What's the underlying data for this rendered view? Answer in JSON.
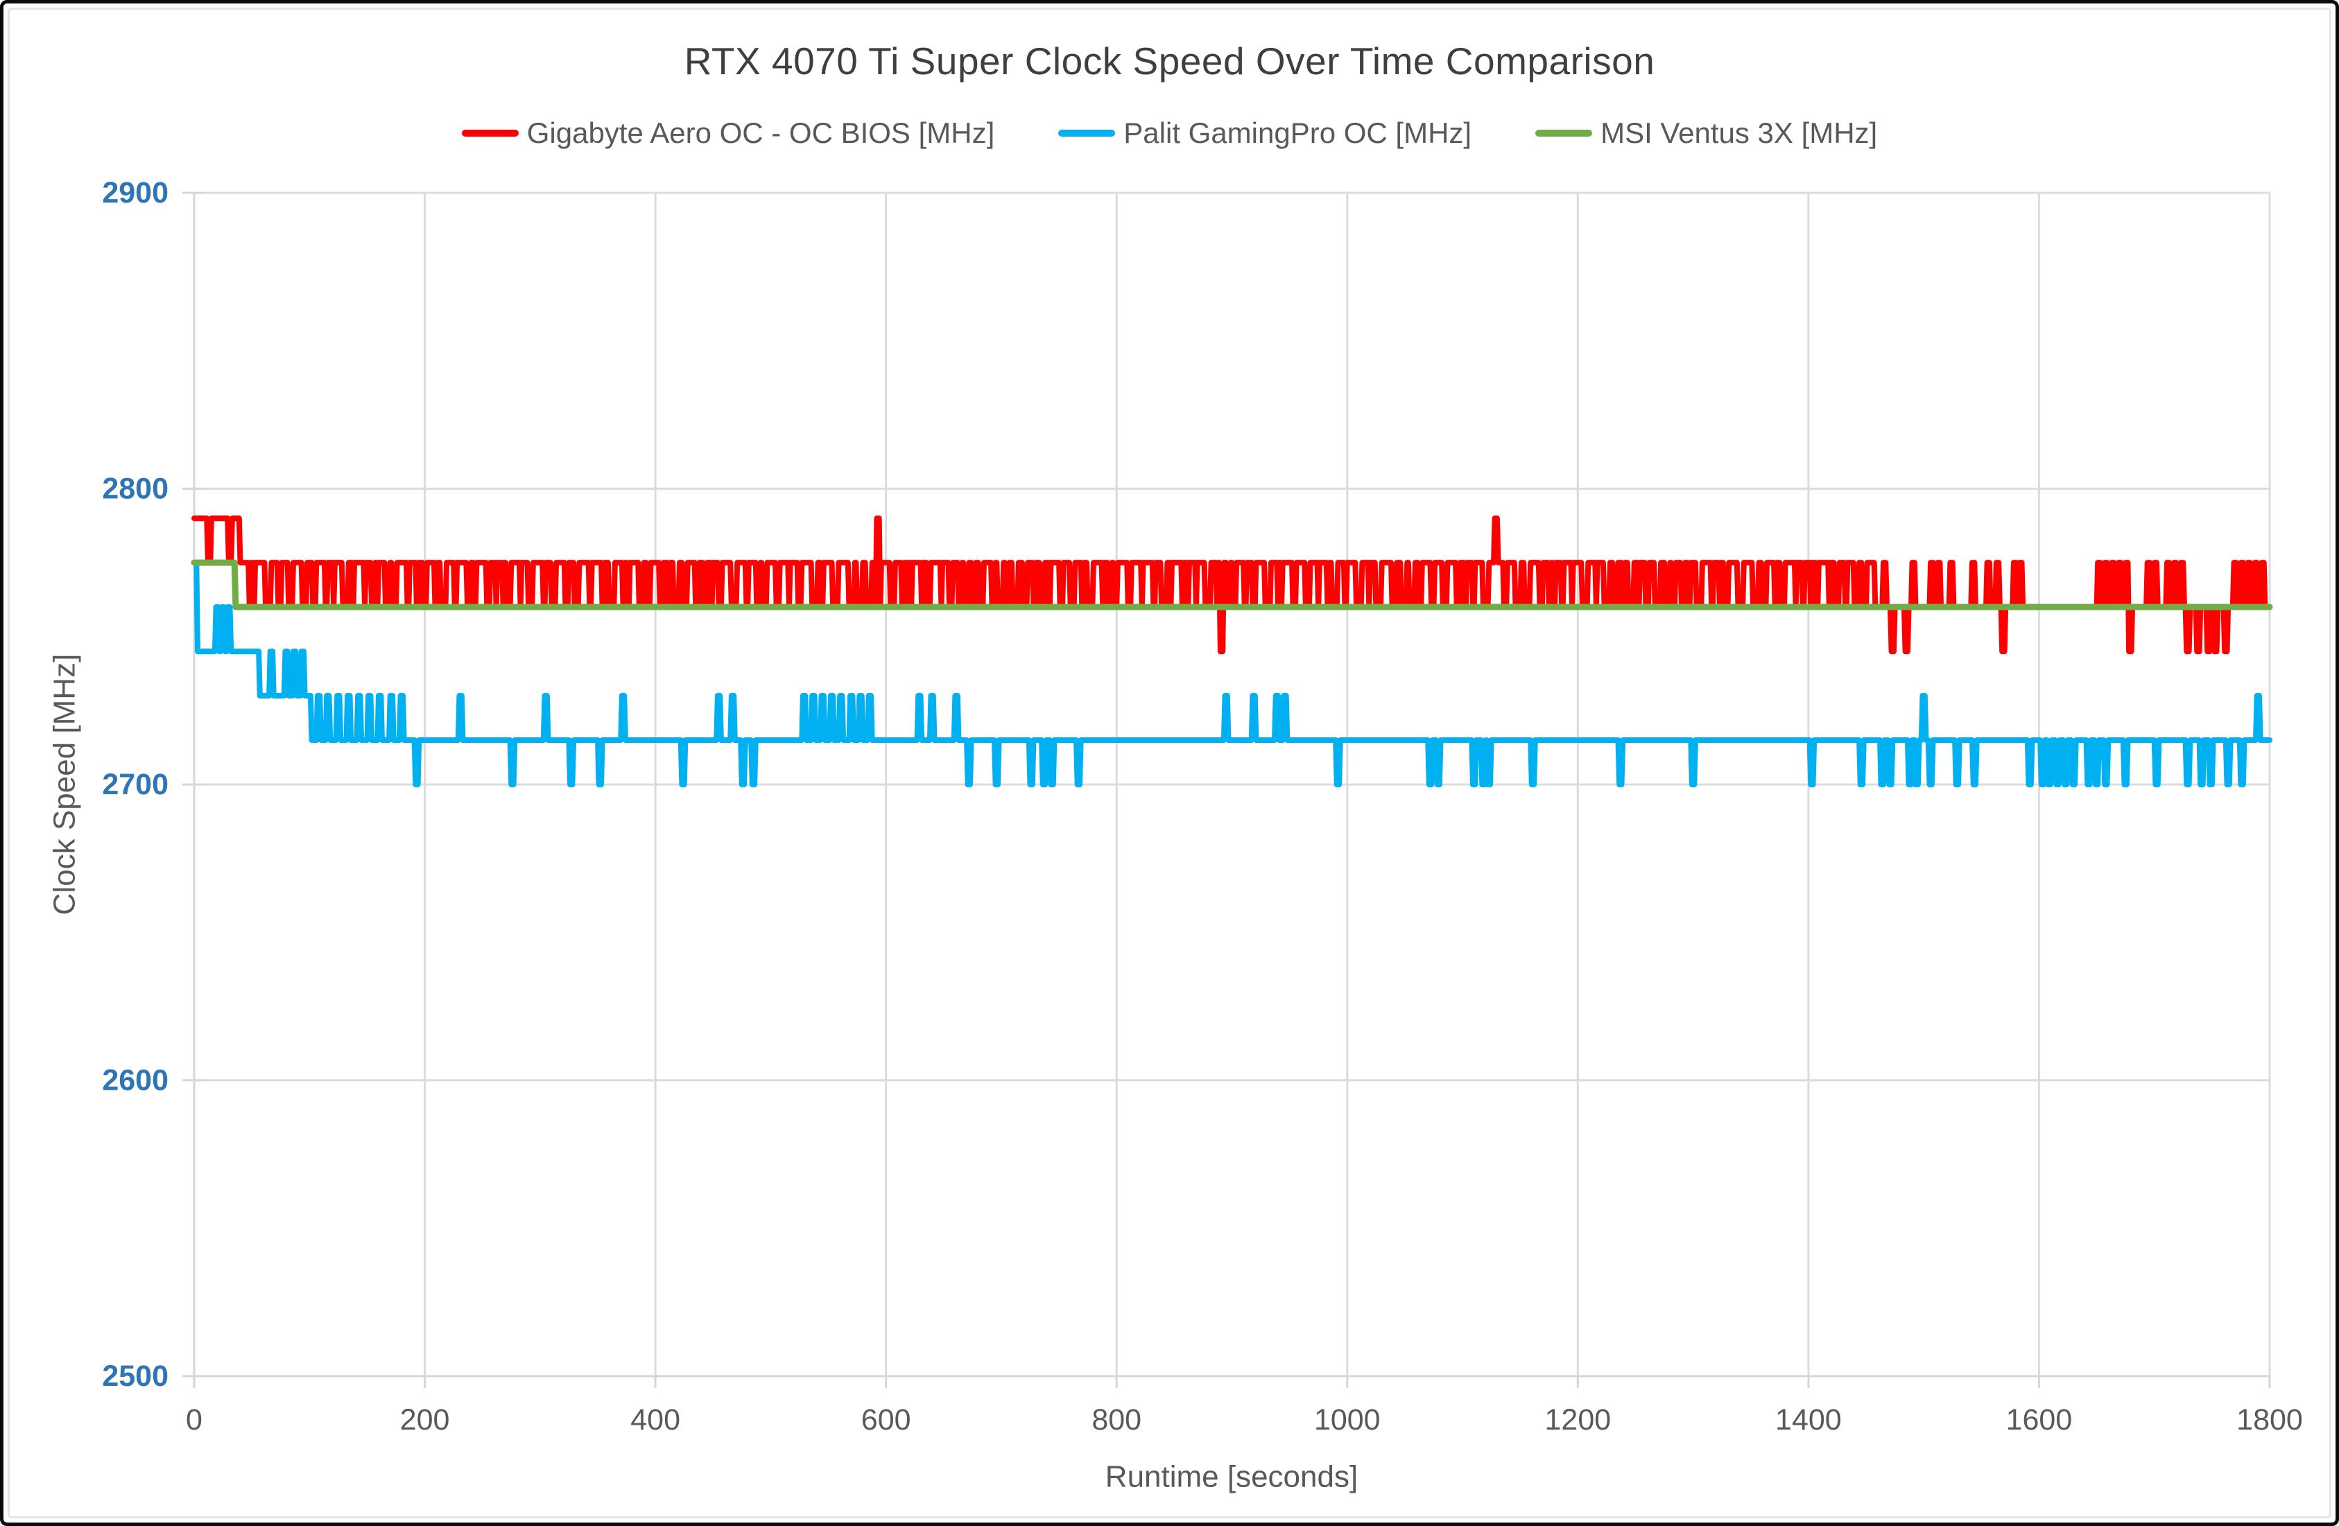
{
  "chart_data": {
    "type": "line",
    "title": "RTX 4070 Ti Super Clock Speed Over Time Comparison",
    "xlabel": "Runtime [seconds]",
    "ylabel": "Clock Speed [MHz]",
    "xlim": [
      0,
      1800
    ],
    "ylim": [
      2500,
      2900
    ],
    "x_ticks": [
      0,
      200,
      400,
      600,
      800,
      1000,
      1200,
      1400,
      1600,
      1800
    ],
    "y_ticks": [
      2500,
      2600,
      2700,
      2800,
      2900
    ],
    "grid": true,
    "legend_position": "top",
    "sample_interval_s": 1,
    "clock_step_mhz": 15,
    "rng_seed": 7,
    "colors": {
      "grid": "#dbdbdb",
      "axis_line": "#d6d6d6",
      "tick_mark": "#d6d6d6",
      "y_tick_label": "#2e75b6",
      "x_tick_label": "#595959",
      "axis_title": "#595959",
      "title_text": "#3f3f3f"
    },
    "series": [
      {
        "name": "Gigabyte Aero OC - OC BIOS [MHz]",
        "color": "#fe0000",
        "stroke_width": 8,
        "segments": [
          {
            "t0": 0,
            "t1": 40,
            "type": "toggle",
            "hi": 2790,
            "lo": 2775,
            "hi_dwell": [
              10,
              18
            ],
            "lo_dwell": [
              2,
              3
            ]
          },
          {
            "t0": 40,
            "t1": 1459,
            "type": "toggle",
            "hi": 2775,
            "lo": 2760,
            "hi_dwell": [
              2,
              9
            ],
            "lo_dwell": [
              1,
              5
            ]
          },
          {
            "t0": 1459,
            "t1": 1800,
            "type": "const",
            "v": 2760
          }
        ],
        "pulses": [
          {
            "t": 593,
            "v": 2790
          },
          {
            "t": 1129,
            "v": 2790
          },
          {
            "t": 1466,
            "v": 2775
          },
          {
            "t": 1491,
            "v": 2775
          },
          {
            "t": 1507,
            "v": 2775
          },
          {
            "t": 1513,
            "v": 2775
          },
          {
            "t": 1524,
            "v": 2775
          },
          {
            "t": 1543,
            "v": 2775
          },
          {
            "t": 1556,
            "v": 2775
          },
          {
            "t": 1564,
            "v": 2775
          },
          {
            "t": 1579,
            "v": 2775
          },
          {
            "t": 1584,
            "v": 2775
          },
          {
            "t": 1652,
            "v": 2775
          },
          {
            "t": 1658,
            "v": 2775
          },
          {
            "t": 1664,
            "v": 2775
          },
          {
            "t": 1670,
            "v": 2775
          },
          {
            "t": 1676,
            "v": 2775
          },
          {
            "t": 1695,
            "v": 2775
          },
          {
            "t": 1701,
            "v": 2775
          },
          {
            "t": 1712,
            "v": 2775
          },
          {
            "t": 1718,
            "v": 2775
          },
          {
            "t": 1724,
            "v": 2775
          },
          {
            "t": 1770,
            "v": 2775
          },
          {
            "t": 1776,
            "v": 2775
          },
          {
            "t": 1782,
            "v": 2775
          },
          {
            "t": 1788,
            "v": 2775
          },
          {
            "t": 1794,
            "v": 2775
          }
        ],
        "dips": [
          {
            "t": 891,
            "v": 2745
          },
          {
            "t": 1473,
            "v": 2745
          },
          {
            "t": 1485,
            "v": 2745
          },
          {
            "t": 1569,
            "v": 2745
          },
          {
            "t": 1679,
            "v": 2745
          },
          {
            "t": 1729,
            "v": 2745
          },
          {
            "t": 1738,
            "v": 2745
          },
          {
            "t": 1747,
            "v": 2745
          },
          {
            "t": 1753,
            "v": 2745
          },
          {
            "t": 1762,
            "v": 2745
          }
        ]
      },
      {
        "name": "Palit GamingPro OC [MHz]",
        "color": "#00b0f0",
        "stroke_width": 8,
        "segments": [
          {
            "t0": 0,
            "t1": 3,
            "type": "const",
            "v": 2775
          },
          {
            "t0": 3,
            "t1": 57,
            "type": "const",
            "v": 2745
          },
          {
            "t0": 57,
            "t1": 102,
            "type": "const",
            "v": 2730
          },
          {
            "t0": 102,
            "t1": 1800,
            "type": "const",
            "v": 2715
          }
        ],
        "pulses": [
          {
            "t": 20,
            "v": 2760
          },
          {
            "t": 25,
            "v": 2760
          },
          {
            "t": 30,
            "v": 2760
          },
          {
            "t": 67,
            "v": 2745
          },
          {
            "t": 80,
            "v": 2745
          },
          {
            "t": 87,
            "v": 2745
          },
          {
            "t": 94,
            "v": 2745
          },
          {
            "t": 108,
            "v": 2730
          },
          {
            "t": 116,
            "v": 2730
          },
          {
            "t": 125,
            "v": 2730
          },
          {
            "t": 134,
            "v": 2730
          },
          {
            "t": 143,
            "v": 2730
          },
          {
            "t": 152,
            "v": 2730
          },
          {
            "t": 161,
            "v": 2730
          },
          {
            "t": 171,
            "v": 2730
          },
          {
            "t": 180,
            "v": 2730
          },
          {
            "t": 231,
            "v": 2730
          },
          {
            "t": 305,
            "v": 2730
          },
          {
            "t": 372,
            "v": 2730
          },
          {
            "t": 455,
            "v": 2730
          },
          {
            "t": 467,
            "v": 2730
          },
          {
            "t": 529,
            "v": 2730
          },
          {
            "t": 537,
            "v": 2730
          },
          {
            "t": 545,
            "v": 2730
          },
          {
            "t": 553,
            "v": 2730
          },
          {
            "t": 561,
            "v": 2730
          },
          {
            "t": 570,
            "v": 2730
          },
          {
            "t": 578,
            "v": 2730
          },
          {
            "t": 586,
            "v": 2730
          },
          {
            "t": 629,
            "v": 2730
          },
          {
            "t": 640,
            "v": 2730
          },
          {
            "t": 661,
            "v": 2730
          },
          {
            "t": 895,
            "v": 2730
          },
          {
            "t": 919,
            "v": 2730
          },
          {
            "t": 939,
            "v": 2730
          },
          {
            "t": 946,
            "v": 2730
          },
          {
            "t": 1500,
            "v": 2730
          },
          {
            "t": 1790,
            "v": 2730
          }
        ],
        "dips": [
          {
            "t": 193,
            "v": 2700
          },
          {
            "t": 276,
            "v": 2700
          },
          {
            "t": 327,
            "v": 2700
          },
          {
            "t": 352,
            "v": 2700
          },
          {
            "t": 424,
            "v": 2700
          },
          {
            "t": 476,
            "v": 2700
          },
          {
            "t": 485,
            "v": 2700
          },
          {
            "t": 672,
            "v": 2700
          },
          {
            "t": 696,
            "v": 2700
          },
          {
            "t": 726,
            "v": 2700
          },
          {
            "t": 737,
            "v": 2700
          },
          {
            "t": 744,
            "v": 2700
          },
          {
            "t": 767,
            "v": 2700
          },
          {
            "t": 992,
            "v": 2700
          },
          {
            "t": 1072,
            "v": 2700
          },
          {
            "t": 1079,
            "v": 2700
          },
          {
            "t": 1110,
            "v": 2700
          },
          {
            "t": 1118,
            "v": 2700
          },
          {
            "t": 1123,
            "v": 2700
          },
          {
            "t": 1161,
            "v": 2700
          },
          {
            "t": 1237,
            "v": 2700
          },
          {
            "t": 1300,
            "v": 2700
          },
          {
            "t": 1403,
            "v": 2700
          },
          {
            "t": 1446,
            "v": 2700
          },
          {
            "t": 1464,
            "v": 2700
          },
          {
            "t": 1471,
            "v": 2700
          },
          {
            "t": 1488,
            "v": 2700
          },
          {
            "t": 1494,
            "v": 2700
          },
          {
            "t": 1506,
            "v": 2700
          },
          {
            "t": 1529,
            "v": 2700
          },
          {
            "t": 1544,
            "v": 2700
          },
          {
            "t": 1592,
            "v": 2700
          },
          {
            "t": 1603,
            "v": 2700
          },
          {
            "t": 1609,
            "v": 2700
          },
          {
            "t": 1616,
            "v": 2700
          },
          {
            "t": 1623,
            "v": 2700
          },
          {
            "t": 1630,
            "v": 2700
          },
          {
            "t": 1643,
            "v": 2700
          },
          {
            "t": 1650,
            "v": 2700
          },
          {
            "t": 1658,
            "v": 2700
          },
          {
            "t": 1675,
            "v": 2700
          },
          {
            "t": 1702,
            "v": 2700
          },
          {
            "t": 1729,
            "v": 2700
          },
          {
            "t": 1741,
            "v": 2700
          },
          {
            "t": 1749,
            "v": 2700
          },
          {
            "t": 1764,
            "v": 2700
          },
          {
            "t": 1776,
            "v": 2700
          }
        ]
      },
      {
        "name": "MSI Ventus 3X [MHz]",
        "color": "#70ad47",
        "stroke_width": 9,
        "segments": [
          {
            "t0": 0,
            "t1": 36,
            "type": "const",
            "v": 2775
          },
          {
            "t0": 36,
            "t1": 1800,
            "type": "const",
            "v": 2760
          }
        ],
        "pulses": [],
        "dips": []
      }
    ]
  }
}
